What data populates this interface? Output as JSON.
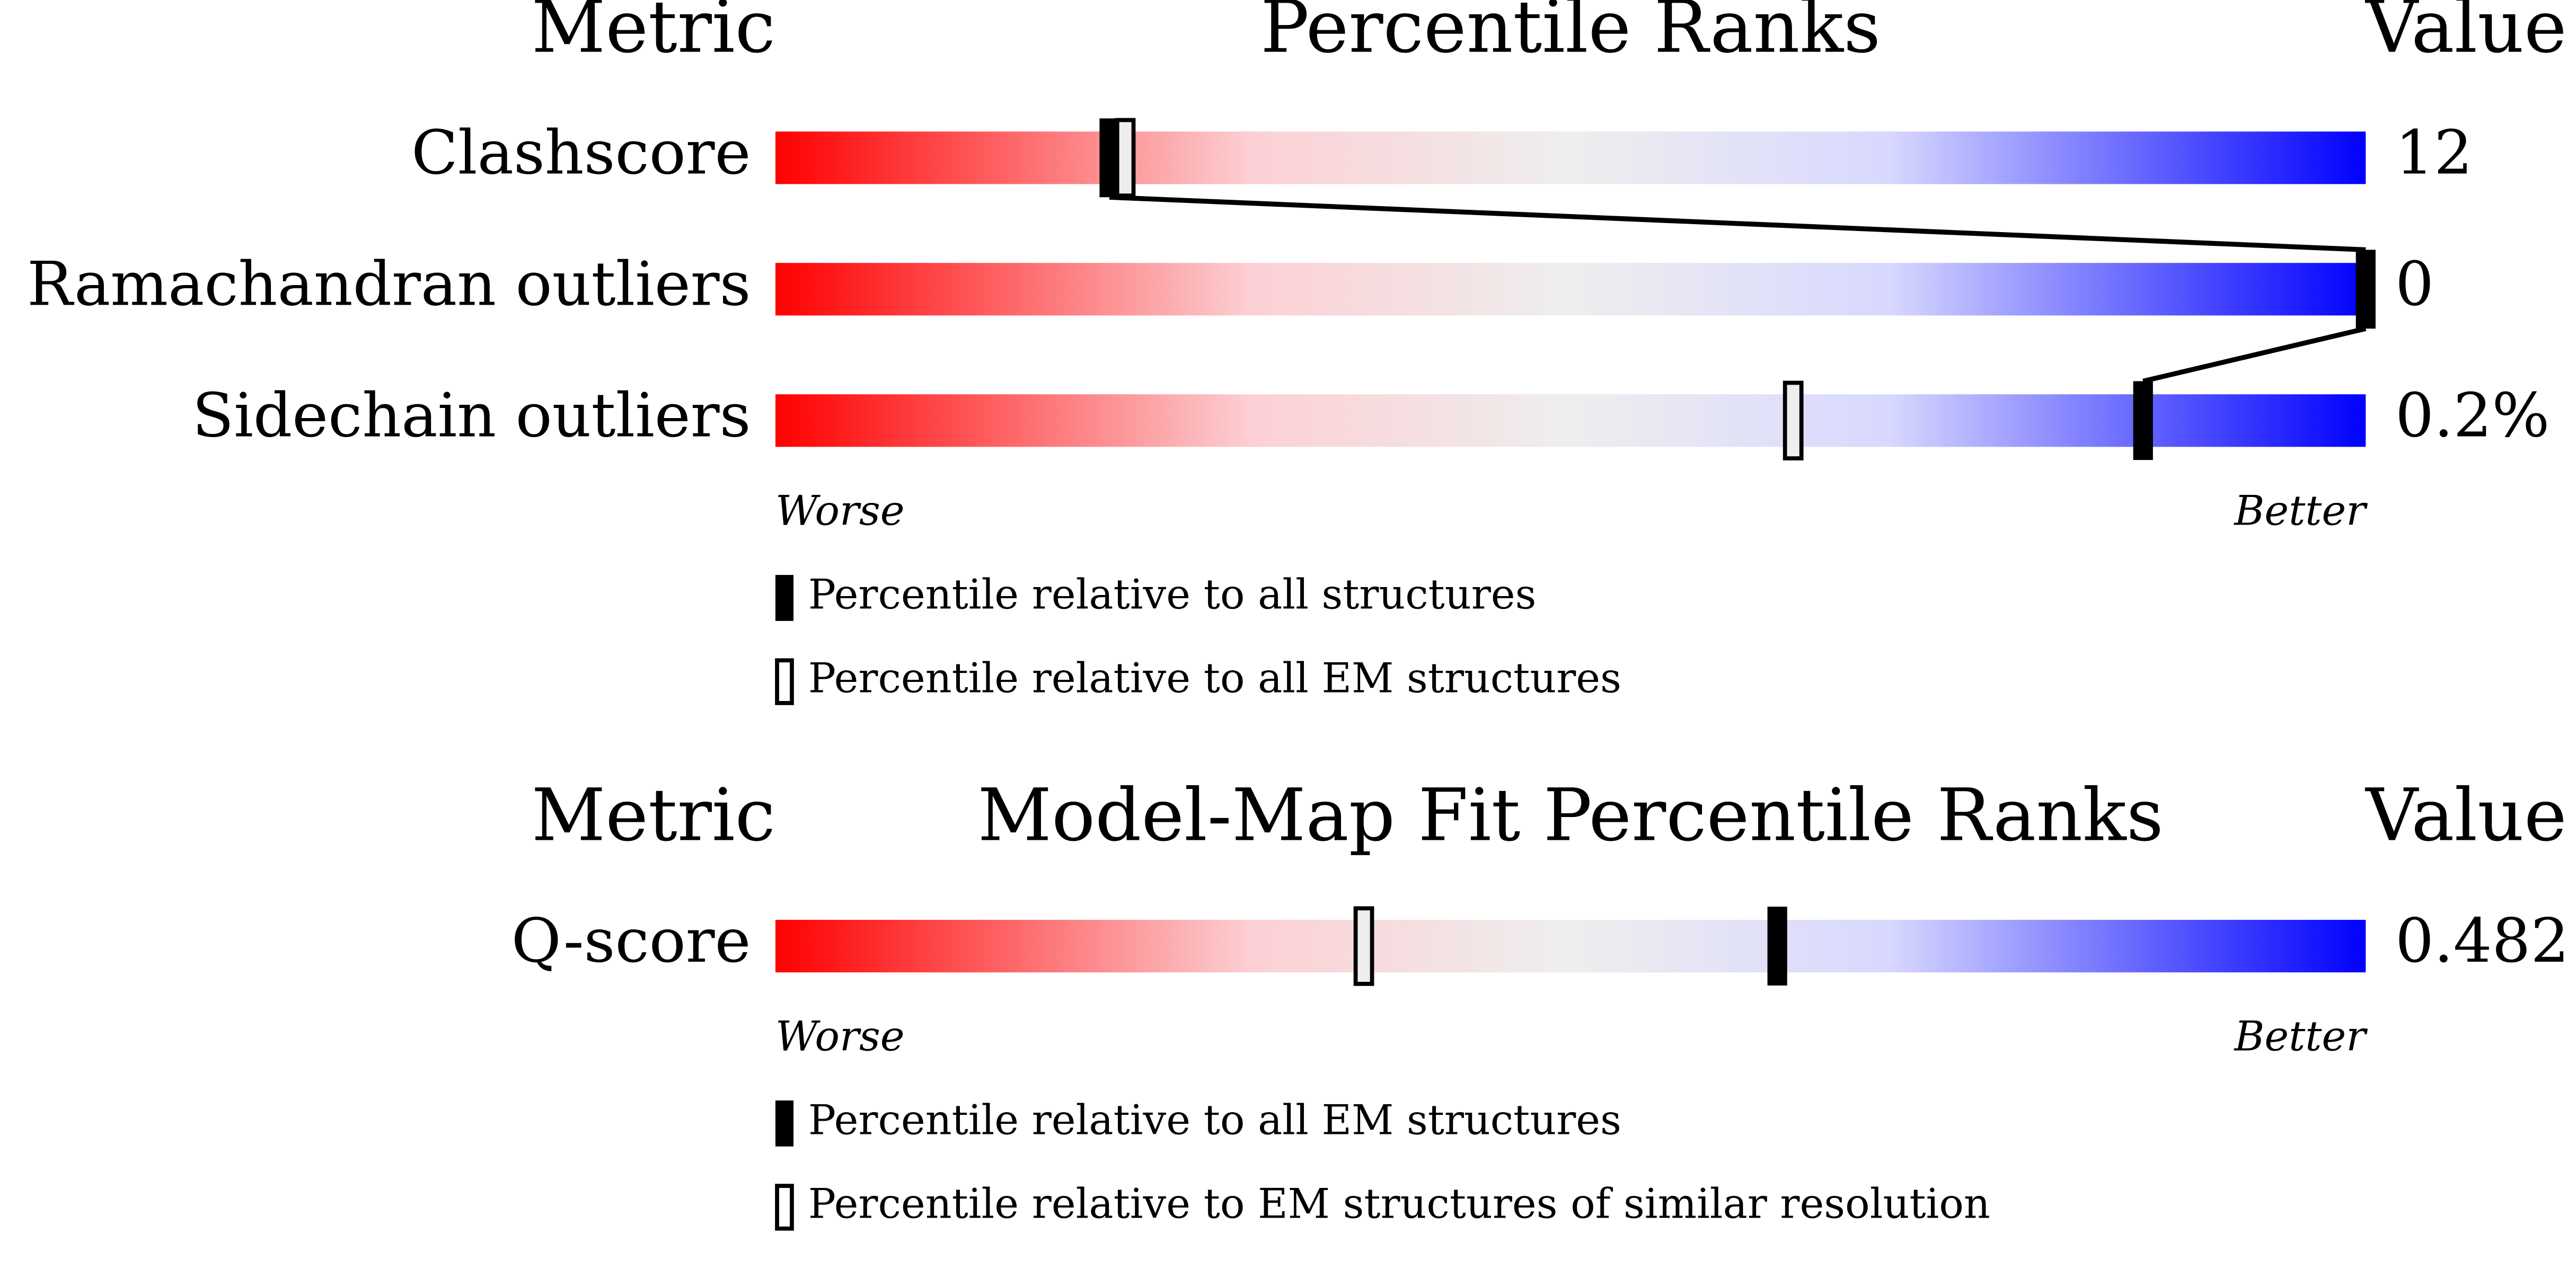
{
  "xlim": [
    0,
    100
  ],
  "panels": [
    {
      "headers": {
        "metric": "Metric",
        "title": "Percentile Ranks",
        "value": "Value"
      },
      "rows": [
        {
          "metric": "Clashscore",
          "value": "12",
          "percentile_all": 21,
          "percentile_em": 22
        },
        {
          "metric": "Ramachandran outliers",
          "value": "0",
          "percentile_all": 100
        },
        {
          "metric": "Sidechain outliers",
          "value": "0.2%",
          "percentile_all": 86,
          "percentile_em": 64
        }
      ],
      "scale": {
        "worse": "Worse",
        "better": "Better"
      },
      "legend": {
        "filled": "Percentile relative to all structures",
        "open": "Percentile relative to all EM structures"
      }
    },
    {
      "headers": {
        "metric": "Metric",
        "title": "Model-Map Fit Percentile Ranks",
        "value": "Value"
      },
      "rows": [
        {
          "metric": "Q-score",
          "value": "0.482",
          "percentile_all": 63,
          "percentile_em": 37
        }
      ],
      "scale": {
        "worse": "Worse",
        "better": "Better"
      },
      "legend": {
        "filled": "Percentile relative to all EM structures",
        "open": "Percentile relative to EM structures of similar resolution"
      }
    }
  ]
}
